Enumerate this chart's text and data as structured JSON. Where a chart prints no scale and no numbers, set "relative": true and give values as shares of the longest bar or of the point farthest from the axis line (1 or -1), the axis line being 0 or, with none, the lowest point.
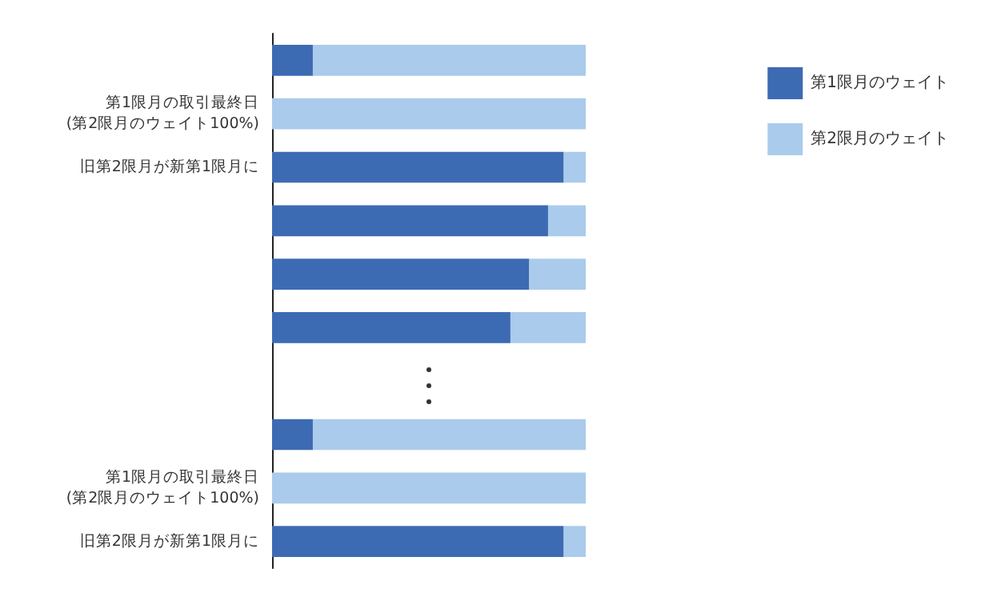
{
  "chart_data": {
    "type": "bar",
    "orientation": "horizontal",
    "stacked": true,
    "relative": true,
    "legend": "top right",
    "categories": [
      null,
      "第1限月の取引最終日\n(第2限月のウェイト100%)",
      "旧第2限月が新第1限月に",
      null,
      null,
      null,
      null,
      null,
      "第1限月の取引最終日\n(第2限月のウェイト100%)",
      "旧第2限月が新第1限月に"
    ],
    "series": [
      {
        "name": "第1限月のウェイト",
        "color": "#3d6bb3",
        "values": [
          0.13,
          0,
          0.93,
          0.88,
          0.82,
          0.76,
          null,
          0.13,
          0,
          0.93
        ]
      },
      {
        "name": "第2限月のウェイト",
        "color": "#aacbeb",
        "values": [
          0.87,
          1,
          0.07,
          0.12,
          0.18,
          0.24,
          null,
          0.87,
          1,
          0.07
        ]
      }
    ]
  }
}
